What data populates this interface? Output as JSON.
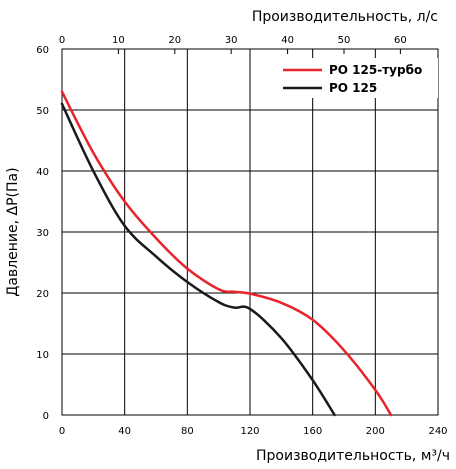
{
  "chart_data": {
    "type": "line",
    "xlabel_bottom": "Производительность, м³/ч",
    "xlabel_top": "Производительность, л/с",
    "ylabel": "Давление, ΔР(Па)",
    "xlim_bottom": [
      0,
      240
    ],
    "xlim_top": [
      0,
      66.67
    ],
    "ylim": [
      0,
      60
    ],
    "x_ticks_bottom": [
      0,
      40,
      80,
      120,
      160,
      200,
      240
    ],
    "x_ticks_top": [
      0,
      10,
      20,
      30,
      40,
      50,
      60
    ],
    "y_ticks": [
      0,
      10,
      20,
      30,
      40,
      50,
      60
    ],
    "grid": true,
    "legend_position": "top-right",
    "series": [
      {
        "name": "РО 125-турбо",
        "color": "#e8242b",
        "x": [
          0,
          20,
          40,
          60,
          80,
          100,
          110,
          120,
          140,
          160,
          180,
          200,
          210
        ],
        "y": [
          53,
          43,
          35,
          29,
          24,
          20.6,
          20.2,
          19.9,
          18.4,
          15.6,
          10.6,
          4.1,
          0
        ]
      },
      {
        "name": "РО 125",
        "color": "#1a1a1a",
        "x": [
          0,
          20,
          40,
          60,
          80,
          100,
          110,
          120,
          140,
          160,
          174
        ],
        "y": [
          51,
          40,
          31,
          26,
          21.8,
          18.5,
          17.6,
          17.4,
          12.6,
          5.7,
          0
        ]
      }
    ]
  }
}
